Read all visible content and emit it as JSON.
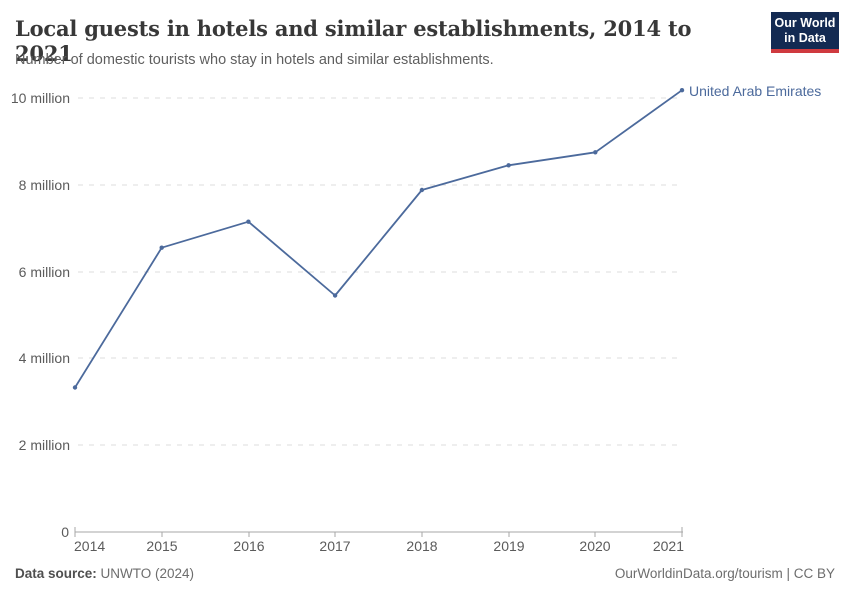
{
  "header": {
    "title": "Local guests in hotels and similar establishments, 2014 to 2021",
    "subtitle": "Number of domestic tourists who stay in hotels and similar establishments.",
    "logo": {
      "line1": "Our World",
      "line2": "in Data"
    }
  },
  "chart_data": {
    "type": "line",
    "title": "Local guests in hotels and similar establishments, 2014 to 2021",
    "subtitle": "Number of domestic tourists who stay in hotels and similar establishments.",
    "xlabel": "",
    "ylabel": "",
    "unit": "million guests",
    "x": [
      2014,
      2015,
      2016,
      2017,
      2018,
      2019,
      2020,
      2021
    ],
    "series": [
      {
        "name": "United Arab Emirates",
        "color": "#4c6a9c",
        "values": [
          3.33,
          6.55,
          7.15,
          5.45,
          7.88,
          8.45,
          8.75,
          10.18
        ]
      }
    ],
    "ylim": [
      0,
      10.5
    ],
    "grid": true,
    "legend_position": "end-of-line-label",
    "ytick_labels": [
      "10 million",
      "8 million",
      "6 million",
      "4 million",
      "2 million",
      "0"
    ],
    "xtick_labels": [
      "2014",
      "2015",
      "2016",
      "2017",
      "2018",
      "2019",
      "2020",
      "2021"
    ]
  },
  "footer": {
    "source_label": "Data source:",
    "source_value": " UNWTO (2024)",
    "credit": "OurWorldinData.org/tourism | CC BY"
  },
  "colors": {
    "line": "#4c6a9c",
    "grid": "#dcdcdc",
    "axis": "#a7a7a7",
    "muted_text": "#5b5b5b",
    "title_text": "#383838",
    "logo_bg": "#132a52",
    "logo_accent": "#cf3a3f"
  }
}
